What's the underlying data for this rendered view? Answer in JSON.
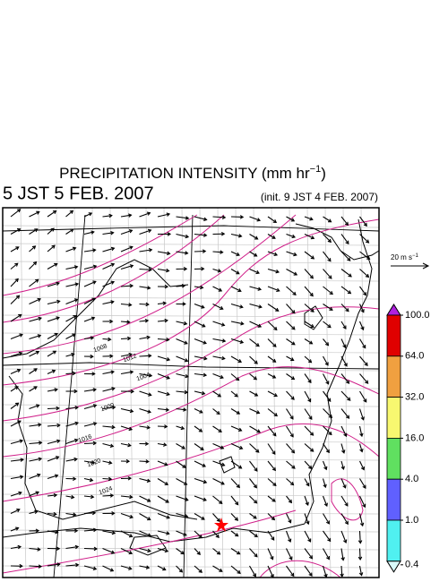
{
  "header": {
    "title": "PRECIPITATION INTENSITY (mm hr",
    "title_exponent": "−1",
    "title_close": ")",
    "valid_time": "5 JST 5 FEB. 2007",
    "init_time": "(init. 9 JST 4 FEB. 2007)"
  },
  "reference_arrow": {
    "label": "20 m s",
    "label_exponent": "−1"
  },
  "colorbar": {
    "levels": [
      {
        "value": 100,
        "label": "100.0"
      },
      {
        "value": 64,
        "label": "64.0"
      },
      {
        "value": 32,
        "label": "32.0"
      },
      {
        "value": 16,
        "label": "16.0"
      },
      {
        "value": 4,
        "label": "4.0"
      },
      {
        "value": 1,
        "label": "1.0"
      },
      {
        "value": 0.4,
        "label": "0.4"
      }
    ],
    "colors": [
      "#e00000",
      "#f0a040",
      "#f8f870",
      "#60e060",
      "#6060ff",
      "#50f0f0"
    ],
    "over_color": "#b020e0",
    "under_color": "#d8fafa"
  },
  "isobar_labels": [
    "1008",
    "1012",
    "1004",
    "1000",
    "1016",
    "1020",
    "1024"
  ]
}
